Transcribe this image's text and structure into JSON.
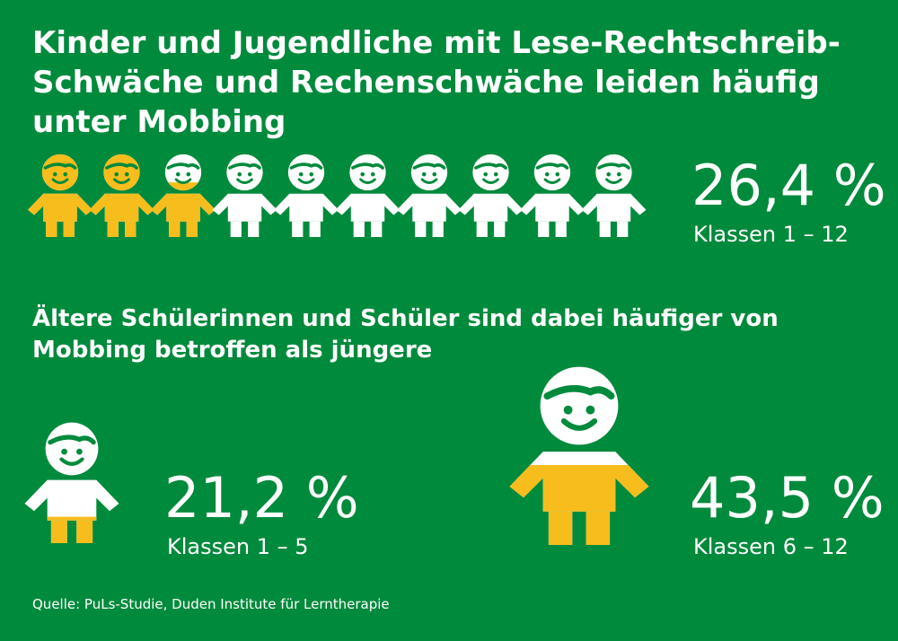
{
  "title": "Kinder und Jugendliche mit Lese-Rechtschreib-Schwäche und Rechenschwäche leiden häufig unter Mobbing",
  "subtitle": "Ältere Schülerinnen und Schüler sind dabei häufiger von Mobbing betroffen als jüngere",
  "source": "Quelle: PuLs-Studie, Duden Institute für Lerntherapie",
  "colors": {
    "background": "#008a3c",
    "highlight": "#f6bd1d",
    "figure": "#ffffff"
  },
  "chart_data": [
    {
      "type": "pictogram",
      "icons_total": 10,
      "value_percent": 26.4,
      "value_label": "26,4 %",
      "category_label": "Klassen 1 – 12"
    },
    {
      "type": "pictogram",
      "group": "younger",
      "value_percent": 21.2,
      "value_label": "21,2 %",
      "category_label": "Klassen 1 – 5"
    },
    {
      "type": "pictogram",
      "group": "older",
      "value_percent": 43.5,
      "value_label": "43,5 %",
      "category_label": "Klassen 6 – 12"
    }
  ]
}
